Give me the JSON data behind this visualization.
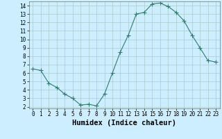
{
  "x": [
    0,
    1,
    2,
    3,
    4,
    5,
    6,
    7,
    8,
    9,
    10,
    11,
    12,
    13,
    14,
    15,
    16,
    17,
    18,
    19,
    20,
    21,
    22,
    23
  ],
  "y": [
    6.5,
    6.3,
    4.8,
    4.3,
    3.5,
    3.0,
    2.2,
    2.3,
    2.1,
    3.5,
    6.0,
    8.5,
    10.5,
    13.0,
    13.2,
    14.2,
    14.3,
    13.9,
    13.2,
    12.2,
    10.5,
    9.0,
    7.5,
    7.3
  ],
  "line_color": "#2e7d6e",
  "marker": "+",
  "marker_size": 4,
  "bg_color": "#cceeff",
  "grid_color": "#aacccc",
  "xlabel": "Humidex (Indice chaleur)",
  "xlim_min": -0.5,
  "xlim_max": 23.5,
  "ylim_min": 1.8,
  "ylim_max": 14.5,
  "yticks": [
    2,
    3,
    4,
    5,
    6,
    7,
    8,
    9,
    10,
    11,
    12,
    13,
    14
  ],
  "xticks": [
    0,
    1,
    2,
    3,
    4,
    5,
    6,
    7,
    8,
    9,
    10,
    11,
    12,
    13,
    14,
    15,
    16,
    17,
    18,
    19,
    20,
    21,
    22,
    23
  ],
  "tick_labelsize": 5.5,
  "xlabel_fontsize": 7.5,
  "linewidth": 0.8,
  "marker_linewidth": 0.8
}
